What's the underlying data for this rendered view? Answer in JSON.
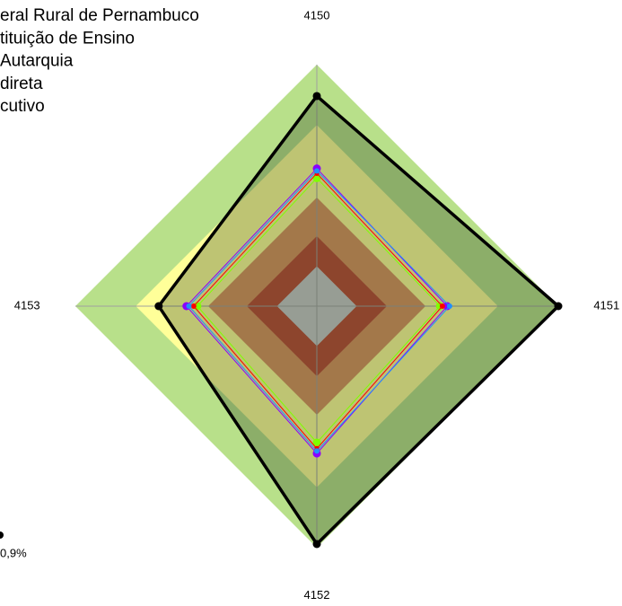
{
  "chart_data": {
    "type": "radar",
    "categories": [
      "4150",
      "4151",
      "4152",
      "4153"
    ],
    "rlim": [
      0,
      100
    ],
    "bands": [
      {
        "value": 100,
        "color": "#b8e08a"
      },
      {
        "value": 75,
        "color": "#ffff99"
      },
      {
        "value": 45,
        "color": "#d8925e"
      },
      {
        "value": 29,
        "color": "#b94a34"
      },
      {
        "value": 16.5,
        "color": "#c8c8c8"
      }
    ],
    "series": [
      {
        "name": "eral Rural de Pernambuco",
        "color": "#000000",
        "values": [
          87,
          100,
          98.5,
          65.5
        ]
      },
      {
        "name": "tituição de Ensino",
        "color": "#8a00ff",
        "values": [
          57,
          54,
          61,
          54
        ]
      },
      {
        "name": " Autarquia",
        "color": "#7fff00",
        "values": [
          53,
          51,
          56.5,
          49.5
        ]
      },
      {
        "name": "direta",
        "color": "#ff0000",
        "values": [
          55,
          52,
          59,
          51
        ]
      },
      {
        "name": "cutivo",
        "color": "#1e90ff",
        "values": [
          56,
          55,
          60,
          53
        ]
      }
    ],
    "annotation": "0,9%"
  }
}
